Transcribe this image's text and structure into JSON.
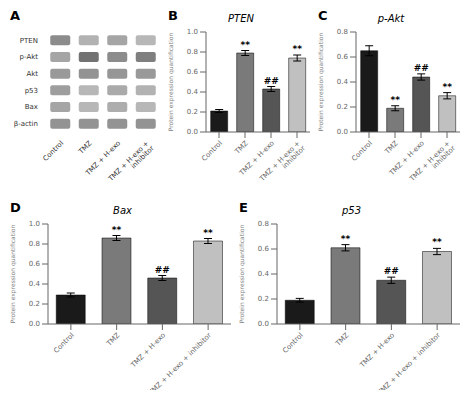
{
  "chart_data": [
    {
      "type": "heatmap",
      "x": [
        "Control",
        "TMZ",
        "TMZ + H-exo",
        "TMZ + H-exo + inhibitor"
      ],
      "y": [
        "PTEN",
        "p-Akt",
        "Akt",
        "p53",
        "Bax",
        "β-actin"
      ],
      "cells": [
        [
          0.45,
          0.3,
          0.35,
          0.28
        ],
        [
          0.35,
          0.55,
          0.45,
          0.5
        ],
        [
          0.4,
          0.42,
          0.41,
          0.4
        ],
        [
          0.38,
          0.28,
          0.33,
          0.3
        ],
        [
          0.35,
          0.28,
          0.32,
          0.28
        ],
        [
          0.42,
          0.42,
          0.42,
          0.42
        ]
      ],
      "annotations": [
        {
          "text": "A"
        }
      ]
    },
    {
      "type": "bar",
      "title": "PTEN",
      "y_label": "Protein expression quantification",
      "categories": [
        "Control",
        "TMZ",
        "TMZ + H-exo",
        "TMZ + H-exo + inhibitor"
      ],
      "values": [
        0.21,
        0.79,
        0.43,
        0.74
      ],
      "errors": [
        0.015,
        0.025,
        0.025,
        0.03
      ],
      "colors": [
        "#1a1a1a",
        "#7a7a7a",
        "#555555",
        "#c0c0c0"
      ],
      "ylim": [
        0.0,
        1.0
      ],
      "yticks": [
        {
          "value": 0.0,
          "label": "0.0"
        },
        0.2,
        0.4,
        0.6,
        0.8,
        {
          "value": 1.0,
          "label": "1.0"
        }
      ],
      "annotations": [
        {
          "text": "B"
        },
        {
          "text": "**",
          "category": "TMZ"
        },
        {
          "text": "##",
          "category": "TMZ + H-exo"
        },
        {
          "text": "**",
          "category": "TMZ + H-exo + inhibitor"
        }
      ]
    },
    {
      "type": "bar",
      "title": "p-Akt",
      "y_label": "Protein expression quantification",
      "categories": [
        "Control",
        "TMZ",
        "TMZ + H-exo",
        "TMZ + H-exo + inhibitor"
      ],
      "values": [
        0.65,
        0.19,
        0.44,
        0.29
      ],
      "errors": [
        0.04,
        0.02,
        0.025,
        0.025
      ],
      "colors": [
        "#1a1a1a",
        "#7a7a7a",
        "#555555",
        "#c0c0c0"
      ],
      "ylim": [
        0.0,
        0.8
      ],
      "yticks": [
        {
          "value": 0.0,
          "label": "0.0"
        },
        0.2,
        0.4,
        0.6,
        0.8
      ],
      "annotations": [
        {
          "text": "C"
        },
        {
          "text": "**",
          "category": "TMZ"
        },
        {
          "text": "##",
          "category": "TMZ + H-exo"
        },
        {
          "text": "**",
          "category": "TMZ + H-exo + inhibitor"
        }
      ]
    },
    {
      "type": "bar",
      "title": "Bax",
      "y_label": "Protein expression quantification",
      "categories": [
        "Control",
        "TMZ",
        "TMZ + H-exo",
        "TMZ + H-exo + inhibitor"
      ],
      "values": [
        0.29,
        0.86,
        0.46,
        0.83
      ],
      "errors": [
        0.02,
        0.025,
        0.025,
        0.025
      ],
      "colors": [
        "#1a1a1a",
        "#7a7a7a",
        "#555555",
        "#c0c0c0"
      ],
      "ylim": [
        0.0,
        1.0
      ],
      "yticks": [
        {
          "value": 0.0,
          "label": "0.0"
        },
        0.2,
        0.4,
        0.6,
        0.8,
        {
          "value": 1.0,
          "label": "1.0"
        }
      ],
      "annotations": [
        {
          "text": "D"
        },
        {
          "text": "**",
          "category": "TMZ"
        },
        {
          "text": "##",
          "category": "TMZ + H-exo"
        },
        {
          "text": "**",
          "category": "TMZ + H-exo + inhibitor"
        }
      ]
    },
    {
      "type": "bar",
      "title": "p53",
      "y_label": "Protein expression quantification",
      "categories": [
        "Control",
        "TMZ",
        "TMZ + H-exo",
        "TMZ + H-exo + inhibitor"
      ],
      "values": [
        0.19,
        0.61,
        0.35,
        0.58
      ],
      "errors": [
        0.015,
        0.025,
        0.025,
        0.025
      ],
      "colors": [
        "#1a1a1a",
        "#7a7a7a",
        "#555555",
        "#c0c0c0"
      ],
      "ylim": [
        0.0,
        0.8
      ],
      "yticks": [
        {
          "value": 0.0,
          "label": "0.0"
        },
        0.2,
        0.4,
        0.6,
        0.8
      ],
      "annotations": [
        {
          "text": "E"
        },
        {
          "text": "**",
          "category": "TMZ"
        },
        {
          "text": "##",
          "category": "TMZ + H-exo"
        },
        {
          "text": "**",
          "category": "TMZ + H-exo + inhibitor"
        }
      ]
    }
  ]
}
